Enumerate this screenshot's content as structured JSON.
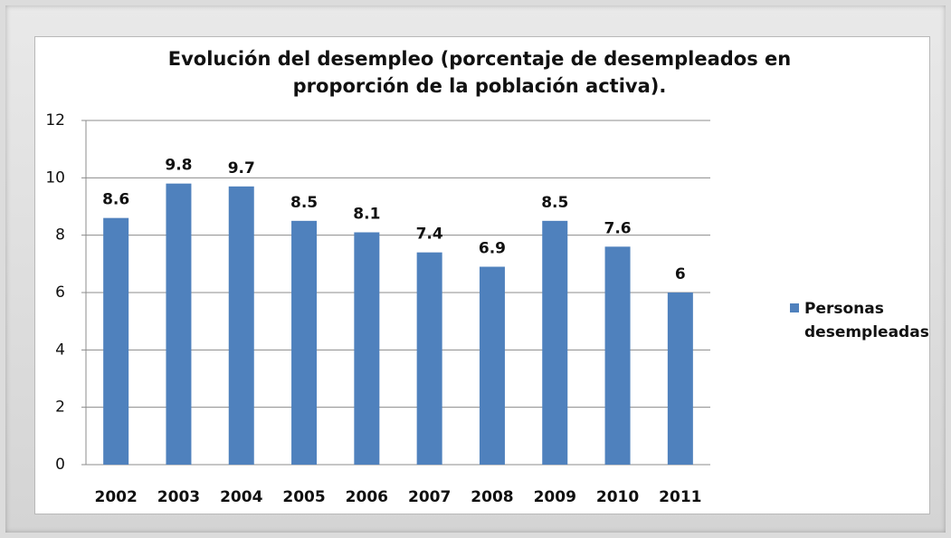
{
  "chart_data": {
    "type": "bar",
    "title": "Evolución del desempleo (porcentaje de desempleados en proporción de la población activa).",
    "categories": [
      "2002",
      "2003",
      "2004",
      "2005",
      "2006",
      "2007",
      "2008",
      "2009",
      "2010",
      "2011"
    ],
    "series": [
      {
        "name": "Personas desempleadas",
        "color": "#4f81bd",
        "values": [
          8.6,
          9.8,
          9.7,
          8.5,
          8.1,
          7.4,
          6.9,
          8.5,
          7.6,
          6
        ]
      }
    ],
    "ylim": [
      0,
      12
    ],
    "yticks": [
      0,
      2,
      4,
      6,
      8,
      10,
      12
    ],
    "grid": true,
    "legend": "right"
  }
}
